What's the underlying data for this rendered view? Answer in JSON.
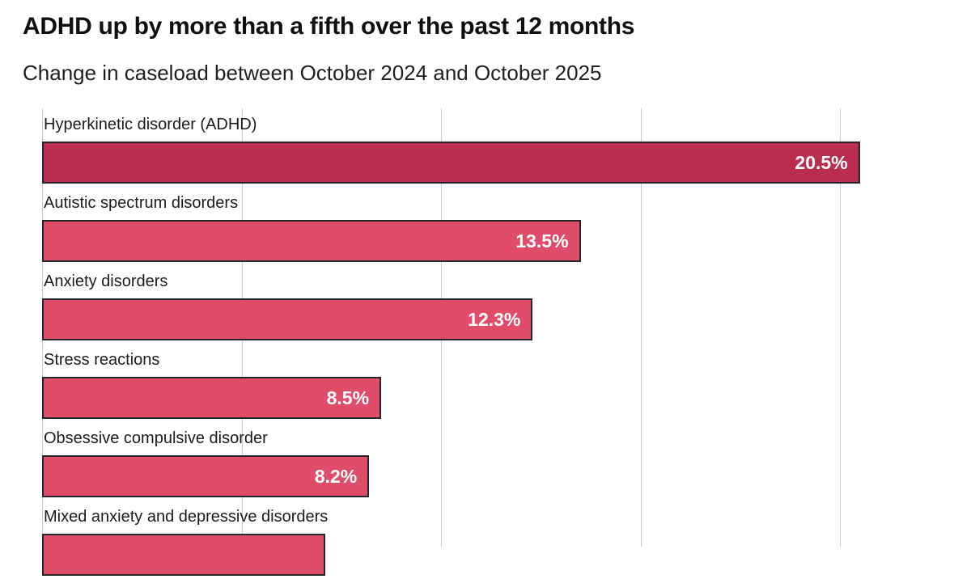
{
  "header": {
    "title": "ADHD up by more than a fifth over the past 12 months",
    "subtitle": "Change in caseload between October 2024 and October 2025"
  },
  "colors": {
    "bar_highlight": "#ba2d50",
    "bar_default": "#e04d6b",
    "bar_border": "#26262b",
    "gridline": "#cbcbcb",
    "value_text": "#ffffff",
    "label_text": "#1c1c1c",
    "background": "#ffffff"
  },
  "chart_data": {
    "type": "bar",
    "orientation": "horizontal",
    "title": "ADHD up by more than a fifth over the past 12 months",
    "subtitle": "Change in caseload between October 2024 and October 2025",
    "xlim": [
      0,
      22.5
    ],
    "gridlines_pct": [
      0,
      5,
      10,
      15,
      20
    ],
    "grid": true,
    "axis_tick_labels_visible": false,
    "legend": "none",
    "bars": [
      {
        "category": "Hyperkinetic disorder (ADHD)",
        "value": 20.5,
        "value_label": "20.5%",
        "highlighted": true
      },
      {
        "category": "Autistic spectrum disorders",
        "value": 13.5,
        "value_label": "13.5%",
        "highlighted": false
      },
      {
        "category": "Anxiety disorders",
        "value": 12.3,
        "value_label": "12.3%",
        "highlighted": false
      },
      {
        "category": "Stress reactions",
        "value": 8.5,
        "value_label": "8.5%",
        "highlighted": false
      },
      {
        "category": "Obsessive compulsive disorder",
        "value": 8.2,
        "value_label": "8.2%",
        "highlighted": false
      },
      {
        "category": "Mixed anxiety and depressive disorders",
        "value": 7.1,
        "value_label": "",
        "highlighted": false,
        "cut_off_at_bottom": true
      }
    ]
  }
}
